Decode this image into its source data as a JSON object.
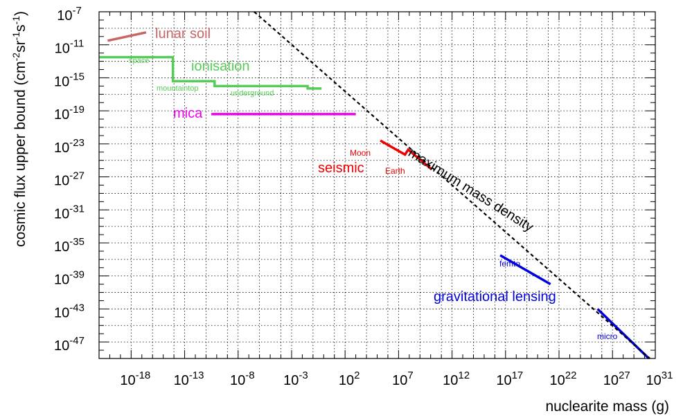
{
  "chart_data": {
    "type": "line",
    "xlabel": "nuclearite mass (g)",
    "ylabel_parts": [
      "cosmic flux upper bound (cm",
      "-2",
      "sr",
      "-1",
      "s",
      "-1",
      ")"
    ],
    "xscale": "log",
    "yscale": "log",
    "xlim_log10": [
      -21,
      31
    ],
    "ylim_log10": [
      -49,
      -7
    ],
    "x_ticks": [
      {
        "exp": -18,
        "label_base": "10",
        "label_exp": "-18"
      },
      {
        "exp": -13,
        "label_base": "10",
        "label_exp": "-13"
      },
      {
        "exp": -8,
        "label_base": "10",
        "label_exp": "-8"
      },
      {
        "exp": -3,
        "label_base": "10",
        "label_exp": "-3"
      },
      {
        "exp": 2,
        "label_base": "10",
        "label_exp": "2"
      },
      {
        "exp": 7,
        "label_base": "10",
        "label_exp": "7"
      },
      {
        "exp": 12,
        "label_base": "10",
        "label_exp": "12"
      },
      {
        "exp": 17,
        "label_base": "10",
        "label_exp": "17"
      },
      {
        "exp": 22,
        "label_base": "10",
        "label_exp": "22"
      },
      {
        "exp": 27,
        "label_base": "10",
        "label_exp": "27"
      },
      {
        "exp": 31,
        "label_base": "10",
        "label_exp": "31"
      }
    ],
    "y_ticks": [
      {
        "exp": -7,
        "label_base": "10",
        "label_exp": "-7"
      },
      {
        "exp": -11,
        "label_base": "10",
        "label_exp": "-11"
      },
      {
        "exp": -15,
        "label_base": "10",
        "label_exp": "-15"
      },
      {
        "exp": -19,
        "label_base": "10",
        "label_exp": "-19"
      },
      {
        "exp": -23,
        "label_base": "10",
        "label_exp": "-23"
      },
      {
        "exp": -27,
        "label_base": "10",
        "label_exp": "-27"
      },
      {
        "exp": -31,
        "label_base": "10",
        "label_exp": "-31"
      },
      {
        "exp": -35,
        "label_base": "10",
        "label_exp": "-35"
      },
      {
        "exp": -39,
        "label_base": "10",
        "label_exp": "-39"
      },
      {
        "exp": -43,
        "label_base": "10",
        "label_exp": "-43"
      },
      {
        "exp": -47,
        "label_base": "10",
        "label_exp": "-47"
      }
    ],
    "grid": true,
    "series": [
      {
        "name": "lunar soil",
        "color": "#c86464",
        "dashed": false,
        "points_log10": [
          [
            -20.2,
            -10.5
          ],
          [
            -16.6,
            -9.5
          ]
        ]
      },
      {
        "name": "ionisation",
        "color": "#55cc55",
        "dashed": false,
        "points_log10": [
          [
            -21,
            -12.5
          ],
          [
            -14.1,
            -12.5
          ],
          [
            -14.1,
            -15.4
          ],
          [
            -10.2,
            -15.4
          ],
          [
            -10.2,
            -16.0
          ],
          [
            -1.5,
            -16.0
          ],
          [
            -1.5,
            -16.3
          ],
          [
            -0.2,
            -16.3
          ]
        ]
      },
      {
        "name": "mica",
        "color": "#ee00ee",
        "dashed": false,
        "points_log10": [
          [
            -10.5,
            -19.4
          ],
          [
            3.0,
            -19.4
          ]
        ]
      },
      {
        "name": "seismic",
        "color": "#ee0000",
        "dashed": false,
        "points_log10": [
          [
            5.3,
            -22.6
          ],
          [
            7.6,
            -24.3
          ],
          [
            7.9,
            -23.7
          ],
          [
            10.1,
            -26.1
          ]
        ]
      },
      {
        "name": "gravitational lensing",
        "color": "#0000dd",
        "dashed": false,
        "points_log10": [
          [
            16.5,
            -36.5
          ],
          [
            21.2,
            -40.0
          ]
        ]
      },
      {
        "name": "gravitational lensing (micro)",
        "color": "#0000dd",
        "dashed": false,
        "points_log10": [
          [
            25.6,
            -43.0
          ],
          [
            30.4,
            -49.0
          ]
        ]
      },
      {
        "name": "maximum mass density",
        "color": "#000000",
        "dashed": true,
        "points_log10": [
          [
            -6.5,
            -7.0
          ],
          [
            30.5,
            -49.0
          ]
        ]
      }
    ],
    "annotations": {
      "lunar_soil": "lunar soil",
      "ionisation": "ionisation",
      "space": "space",
      "mountaintop": "mountaintop",
      "underground": "underground",
      "mica": "mica",
      "moon": "Moon",
      "earth": "Earth",
      "seismic": "seismic",
      "max_mass_density": "maximum mass density",
      "femto": "femto",
      "grav_lensing": "gravitational lensing",
      "micro": "micro"
    }
  }
}
